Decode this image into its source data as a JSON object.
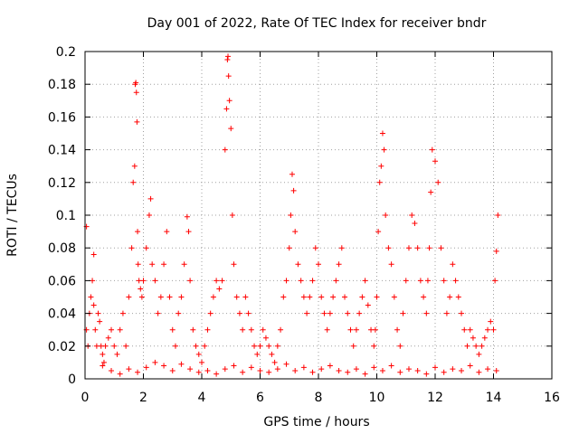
{
  "chart_data": {
    "type": "scatter",
    "title": "Day 001 of 2022, Rate Of TEC Index for receiver bndr",
    "xlabel": "GPS time / hours",
    "ylabel": "ROTI / TECUs",
    "xlim": [
      0,
      16
    ],
    "ylim": [
      0,
      0.2
    ],
    "xticks": [
      0,
      2,
      4,
      6,
      8,
      10,
      12,
      14,
      16
    ],
    "xtick_labels": [
      "0",
      "2",
      "4",
      "6",
      "8",
      "10",
      "12",
      "14",
      "16"
    ],
    "yticks": [
      0,
      0.02,
      0.04,
      0.06,
      0.08,
      0.1,
      0.12,
      0.14,
      0.16,
      0.18,
      0.2
    ],
    "ytick_labels": [
      "0",
      "0.02",
      "0.04",
      "0.06",
      "0.08",
      "0.1",
      "0.12",
      "0.14",
      "0.16",
      "0.18",
      "0.2"
    ],
    "grid": true,
    "marker": "+",
    "color": "#ff0000",
    "x": [
      0.05,
      0.1,
      0.15,
      0.2,
      0.25,
      0.3,
      0.35,
      0.4,
      0.45,
      0.5,
      0.55,
      0.6,
      0.65,
      0.7,
      0.8,
      0.9,
      1.0,
      1.1,
      1.2,
      1.3,
      1.4,
      1.5,
      1.6,
      1.65,
      1.7,
      1.72,
      1.74,
      1.76,
      1.78,
      1.8,
      1.82,
      1.85,
      1.9,
      1.95,
      2.0,
      2.1,
      2.2,
      2.25,
      2.3,
      2.4,
      2.5,
      2.6,
      2.7,
      2.8,
      2.9,
      3.0,
      3.1,
      3.2,
      3.3,
      3.4,
      3.5,
      3.55,
      3.6,
      3.7,
      3.8,
      3.9,
      4.0,
      4.1,
      4.2,
      4.3,
      4.4,
      4.5,
      4.6,
      4.7,
      4.8,
      4.85,
      4.88,
      4.9,
      4.92,
      4.95,
      5.0,
      5.05,
      5.1,
      5.2,
      5.3,
      5.4,
      5.5,
      5.6,
      5.7,
      5.8,
      5.9,
      6.0,
      6.1,
      6.2,
      6.3,
      6.4,
      6.5,
      6.6,
      6.7,
      6.8,
      6.9,
      7.0,
      7.05,
      7.1,
      7.15,
      7.2,
      7.3,
      7.4,
      7.5,
      7.6,
      7.7,
      7.8,
      7.9,
      8.0,
      8.1,
      8.2,
      8.3,
      8.4,
      8.5,
      8.6,
      8.7,
      8.8,
      8.9,
      9.0,
      9.1,
      9.2,
      9.3,
      9.4,
      9.5,
      9.6,
      9.7,
      9.8,
      9.9,
      9.95,
      10.0,
      10.05,
      10.1,
      10.15,
      10.2,
      10.25,
      10.3,
      10.4,
      10.5,
      10.6,
      10.7,
      10.8,
      10.9,
      11.0,
      11.1,
      11.2,
      11.3,
      11.4,
      11.5,
      11.6,
      11.7,
      11.75,
      11.8,
      11.85,
      11.9,
      12.0,
      12.1,
      12.2,
      12.3,
      12.4,
      12.5,
      12.6,
      12.7,
      12.8,
      12.9,
      13.0,
      13.1,
      13.2,
      13.3,
      13.4,
      13.5,
      13.6,
      13.7,
      13.8,
      13.9,
      14.0,
      14.05,
      14.1,
      14.15,
      0.05,
      0.3,
      0.6,
      0.9,
      1.2,
      1.5,
      1.8,
      2.1,
      2.4,
      2.7,
      3.0,
      3.3,
      3.6,
      3.9,
      4.2,
      4.5,
      4.8,
      5.1,
      5.4,
      5.7,
      6.0,
      6.3,
      6.6,
      6.9,
      7.2,
      7.5,
      7.8,
      8.1,
      8.4,
      8.7,
      9.0,
      9.3,
      9.6,
      9.9,
      10.2,
      10.5,
      10.8,
      11.1,
      11.4,
      11.7,
      12.0,
      12.3,
      12.6,
      12.9,
      13.2,
      13.5,
      13.8,
      14.1
    ],
    "y": [
      0.03,
      0.02,
      0.04,
      0.05,
      0.06,
      0.045,
      0.03,
      0.02,
      0.04,
      0.035,
      0.02,
      0.015,
      0.01,
      0.02,
      0.025,
      0.03,
      0.02,
      0.015,
      0.03,
      0.04,
      0.02,
      0.05,
      0.08,
      0.12,
      0.13,
      0.18,
      0.181,
      0.175,
      0.157,
      0.09,
      0.07,
      0.06,
      0.055,
      0.05,
      0.06,
      0.08,
      0.1,
      0.11,
      0.07,
      0.06,
      0.04,
      0.05,
      0.07,
      0.09,
      0.05,
      0.03,
      0.02,
      0.04,
      0.05,
      0.07,
      0.099,
      0.09,
      0.06,
      0.03,
      0.02,
      0.015,
      0.01,
      0.02,
      0.03,
      0.04,
      0.05,
      0.06,
      0.055,
      0.06,
      0.14,
      0.165,
      0.195,
      0.197,
      0.185,
      0.17,
      0.153,
      0.1,
      0.07,
      0.05,
      0.04,
      0.03,
      0.05,
      0.04,
      0.03,
      0.02,
      0.015,
      0.02,
      0.03,
      0.025,
      0.02,
      0.015,
      0.01,
      0.02,
      0.03,
      0.05,
      0.06,
      0.08,
      0.1,
      0.125,
      0.115,
      0.09,
      0.07,
      0.06,
      0.05,
      0.04,
      0.05,
      0.06,
      0.08,
      0.07,
      0.05,
      0.04,
      0.03,
      0.04,
      0.05,
      0.06,
      0.07,
      0.08,
      0.05,
      0.04,
      0.03,
      0.02,
      0.03,
      0.04,
      0.05,
      0.06,
      0.045,
      0.03,
      0.02,
      0.03,
      0.05,
      0.09,
      0.12,
      0.13,
      0.15,
      0.14,
      0.1,
      0.08,
      0.07,
      0.05,
      0.03,
      0.02,
      0.04,
      0.06,
      0.08,
      0.1,
      0.095,
      0.08,
      0.06,
      0.05,
      0.04,
      0.06,
      0.08,
      0.114,
      0.14,
      0.133,
      0.12,
      0.08,
      0.06,
      0.04,
      0.05,
      0.07,
      0.06,
      0.05,
      0.04,
      0.03,
      0.02,
      0.03,
      0.025,
      0.02,
      0.015,
      0.02,
      0.025,
      0.03,
      0.035,
      0.03,
      0.06,
      0.078,
      0.1,
      0.093,
      0.076,
      0.008,
      0.005,
      0.003,
      0.006,
      0.004,
      0.007,
      0.01,
      0.008,
      0.005,
      0.009,
      0.006,
      0.004,
      0.005,
      0.003,
      0.006,
      0.008,
      0.004,
      0.007,
      0.005,
      0.004,
      0.006,
      0.009,
      0.005,
      0.007,
      0.004,
      0.006,
      0.008,
      0.005,
      0.004,
      0.006,
      0.003,
      0.007,
      0.005,
      0.008,
      0.004,
      0.006,
      0.005,
      0.003,
      0.007,
      0.004,
      0.006,
      0.005,
      0.008,
      0.004,
      0.006,
      0.005
    ]
  }
}
